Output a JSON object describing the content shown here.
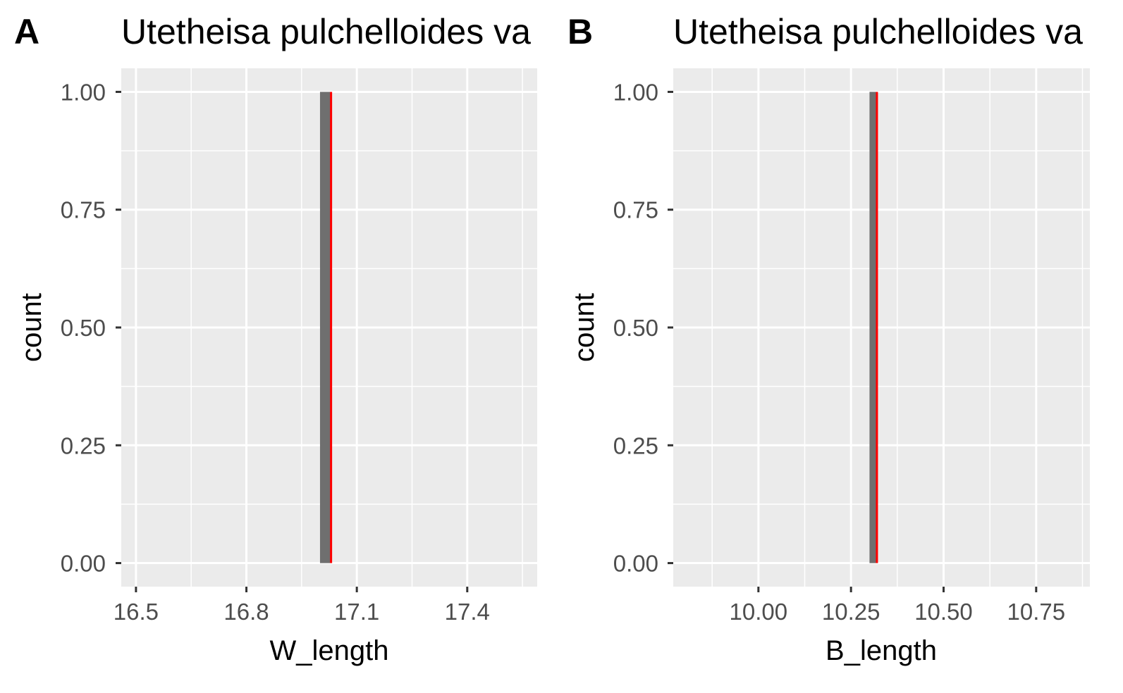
{
  "chart_data": [
    {
      "type": "bar",
      "panel_label": "A",
      "title": "Utetheisa pulchelloides va",
      "xlabel": "W_length",
      "ylabel": "count",
      "xlim": [
        16.46,
        17.59
      ],
      "ylim": [
        -0.05,
        1.05
      ],
      "x_ticks": [
        {
          "value": 16.5,
          "label": "16.5"
        },
        {
          "value": 16.8,
          "label": "16.8"
        },
        {
          "value": 17.1,
          "label": "17.1"
        },
        {
          "value": 17.4,
          "label": "17.4"
        }
      ],
      "y_ticks": [
        {
          "value": 0.0,
          "label": "0.00"
        },
        {
          "value": 0.25,
          "label": "0.25"
        },
        {
          "value": 0.5,
          "label": "0.50"
        },
        {
          "value": 0.75,
          "label": "0.75"
        },
        {
          "value": 1.0,
          "label": "1.00"
        }
      ],
      "bins": [
        {
          "xmin": 17.0,
          "xmax": 17.03,
          "count": 1
        }
      ],
      "vline": {
        "x": 17.03,
        "color": "#ff0000"
      },
      "grid": true,
      "colors": {
        "bar": "#6f6f6f",
        "panel_bg": "#ebebeb",
        "grid": "#ffffff"
      }
    },
    {
      "type": "bar",
      "panel_label": "B",
      "title": "Utetheisa pulchelloides va",
      "xlabel": "B_length",
      "ylabel": "count",
      "xlim": [
        9.77,
        10.895
      ],
      "ylim": [
        -0.05,
        1.05
      ],
      "x_ticks": [
        {
          "value": 10.0,
          "label": "10.00"
        },
        {
          "value": 10.25,
          "label": "10.25"
        },
        {
          "value": 10.5,
          "label": "10.50"
        },
        {
          "value": 10.75,
          "label": "10.75"
        }
      ],
      "y_ticks": [
        {
          "value": 0.0,
          "label": "0.00"
        },
        {
          "value": 0.25,
          "label": "0.25"
        },
        {
          "value": 0.5,
          "label": "0.50"
        },
        {
          "value": 0.75,
          "label": "0.75"
        },
        {
          "value": 1.0,
          "label": "1.00"
        }
      ],
      "bins": [
        {
          "xmin": 10.3,
          "xmax": 10.32,
          "count": 1
        }
      ],
      "vline": {
        "x": 10.32,
        "color": "#ff0000"
      },
      "grid": true,
      "colors": {
        "bar": "#6f6f6f",
        "panel_bg": "#ebebeb",
        "grid": "#ffffff"
      }
    }
  ]
}
